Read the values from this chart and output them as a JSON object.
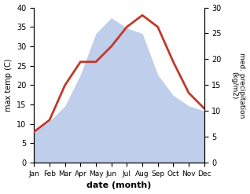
{
  "months": [
    "Jan",
    "Feb",
    "Mar",
    "Apr",
    "May",
    "Jun",
    "Jul",
    "Aug",
    "Sep",
    "Oct",
    "Nov",
    "Dec"
  ],
  "temperature": [
    8,
    11,
    20,
    26,
    26,
    30,
    35,
    38,
    35,
    26,
    18,
    14
  ],
  "precipitation": [
    6,
    8,
    11,
    17,
    25,
    28,
    26,
    25,
    17,
    13,
    11,
    10
  ],
  "temp_color": "#c0392b",
  "precip_fill_color": "#b8c9e8",
  "left_ylabel": "max temp (C)",
  "right_ylabel": "med. precipitation\n(kg/m2)",
  "xlabel": "date (month)",
  "ylim_left": [
    0,
    40
  ],
  "ylim_right": [
    0,
    30
  ],
  "temp_linewidth": 2.0
}
